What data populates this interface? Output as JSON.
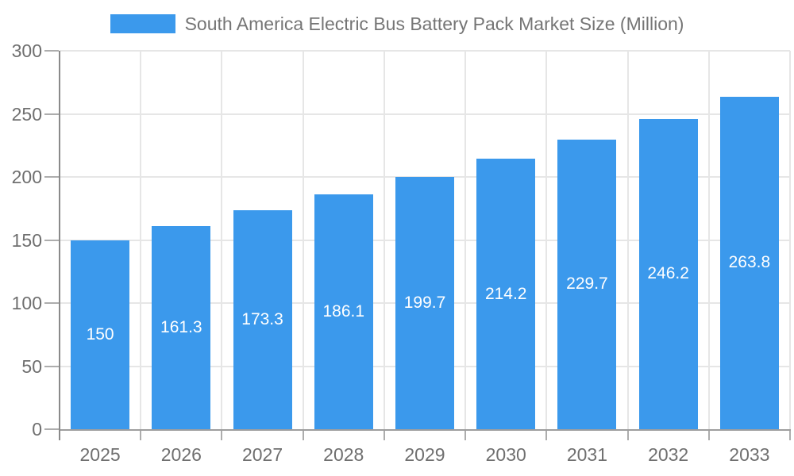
{
  "chart_data": {
    "type": "bar",
    "title": "South America Electric Bus Battery Pack Market Size (Million)",
    "legend_entries": [
      "South America Electric Bus Battery Pack Market Size (Million)"
    ],
    "legend_position": "top-center",
    "categories": [
      "2025",
      "2026",
      "2027",
      "2028",
      "2029",
      "2030",
      "2031",
      "2032",
      "2033"
    ],
    "values": [
      150,
      161.3,
      173.3,
      186.1,
      199.7,
      214.2,
      229.7,
      246.2,
      263.8
    ],
    "value_labels": [
      "150",
      "161.3",
      "173.3",
      "186.1",
      "199.7",
      "214.2",
      "229.7",
      "246.2",
      "263.8"
    ],
    "value_label_position": "inside-center",
    "xlabel": "",
    "ylabel": "",
    "ylim": [
      0,
      300
    ],
    "ytick_step": 50,
    "ytick_labels": [
      "0",
      "50",
      "100",
      "150",
      "200",
      "250",
      "300"
    ],
    "grid": "on"
  },
  "colors": {
    "bar": "#3B99EC",
    "title_text": "#757575",
    "axis_text": "#6F6F6F",
    "grid": "#E6E6E6",
    "x_axis_line": "#9E9E9E",
    "y_axis_line": "#8A8A8A",
    "tick": "#ADADAD",
    "value_label_text": "#FFFFFF",
    "background": "#FFFFFF"
  }
}
